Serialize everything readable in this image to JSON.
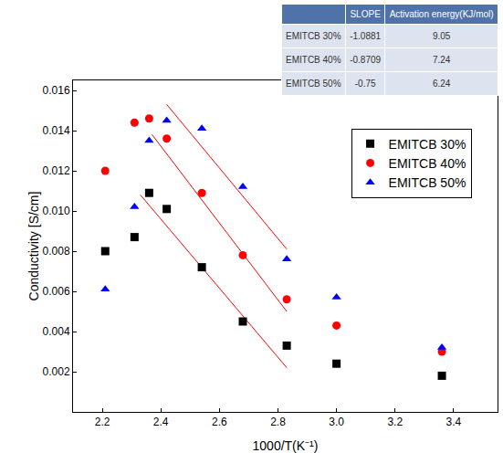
{
  "chart_data": {
    "type": "scatter",
    "x_label": "1000/T(K⁻¹)",
    "y_label": "Conductivity [S/cm]",
    "x": [
      2.21,
      2.31,
      2.36,
      2.42,
      2.54,
      2.68,
      2.83,
      3.0,
      3.36
    ],
    "series": [
      {
        "name": "EMITCB 30%",
        "color": "#000000",
        "marker": "square",
        "values": [
          0.008,
          0.0087,
          0.0109,
          0.0101,
          0.0072,
          0.0045,
          0.0033,
          0.0024,
          0.0018
        ]
      },
      {
        "name": "EMITCB 40%",
        "color": "#ff0000",
        "marker": "circle",
        "values": [
          0.012,
          0.0144,
          0.0146,
          0.0136,
          0.0109,
          0.0078,
          0.0056,
          0.0043,
          0.003
        ]
      },
      {
        "name": "EMITCB 50%",
        "color": "#0000ff",
        "marker": "triangle-up",
        "values": [
          0.0061,
          0.0102,
          0.0135,
          0.0145,
          0.0141,
          0.0112,
          0.0076,
          0.0057,
          0.0032
        ]
      }
    ],
    "fit_lines": [
      {
        "color": "#ff0000",
        "x": [
          2.33,
          2.83
        ],
        "values": [
          0.0108,
          0.0022
        ]
      },
      {
        "color": "#ff0000",
        "x": [
          2.37,
          2.83
        ],
        "values": [
          0.0138,
          0.005
        ]
      },
      {
        "color": "#ff0000",
        "x": [
          2.42,
          2.83
        ],
        "values": [
          0.0153,
          0.0081
        ]
      }
    ],
    "xlim": [
      2.1,
      3.55
    ],
    "xticks": [
      {
        "value": 2.2,
        "label": "2.2"
      },
      {
        "value": 2.4,
        "label": "2.4"
      },
      {
        "value": 2.6,
        "label": "2.6"
      },
      {
        "value": 2.8,
        "label": "2.8"
      },
      {
        "value": 3.0,
        "label": "3.0"
      },
      {
        "value": 3.2,
        "label": "3.2"
      },
      {
        "value": 3.4,
        "label": "3.4"
      }
    ],
    "ylim": [
      0.0,
      0.0165
    ],
    "yticks": [
      {
        "value": 0.002,
        "label": "0.002"
      },
      {
        "value": 0.004,
        "label": "0.004"
      },
      {
        "value": 0.006,
        "label": "0.006"
      },
      {
        "value": 0.008,
        "label": "0.008"
      },
      {
        "value": 0.01,
        "label": "0.010"
      },
      {
        "value": 0.012,
        "label": "0.012"
      },
      {
        "value": 0.014,
        "label": "0.014"
      },
      {
        "value": 0.016,
        "label": "0.016"
      }
    ],
    "grid": false,
    "legend": "upper right"
  },
  "table": {
    "header": [
      "SLOPE",
      "Activation energy(KJ/mol)"
    ],
    "rows": [
      [
        "EMITCB 30%",
        "-1.0881",
        "9.05"
      ],
      [
        "EMITCB 40%",
        "-0.8709",
        "7.24"
      ],
      [
        "EMITCB 50%",
        "-0.75",
        "6.24"
      ]
    ]
  }
}
